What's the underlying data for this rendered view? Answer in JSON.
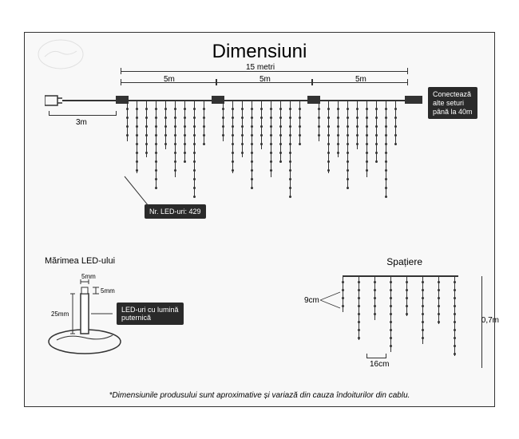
{
  "title": "Dimensiuni",
  "total_length": "15 metri",
  "segment_length": "5m",
  "lead_cable": "3m",
  "led_count_label": "Nr. LED-uri: 429",
  "connect_info": "Conectează\nalte seturi\npână la 40m",
  "led_size_title": "Mărimea LED-ului",
  "led_width": "5mm",
  "led_height": "5mm",
  "led_body": "25mm",
  "led_desc": "LED-uri cu lumină\nputernică",
  "spacing_title": "Spațiere",
  "spacing_h": "16cm",
  "spacing_v": "9cm",
  "height": "0,7m",
  "footnote": "*Dimensiunile produsului sunt aproximative și variază din cauza îndoiturilor din cablu.",
  "colors": {
    "bg": "#f8f8f8",
    "line": "#333333",
    "box": "#2a2a2a"
  }
}
